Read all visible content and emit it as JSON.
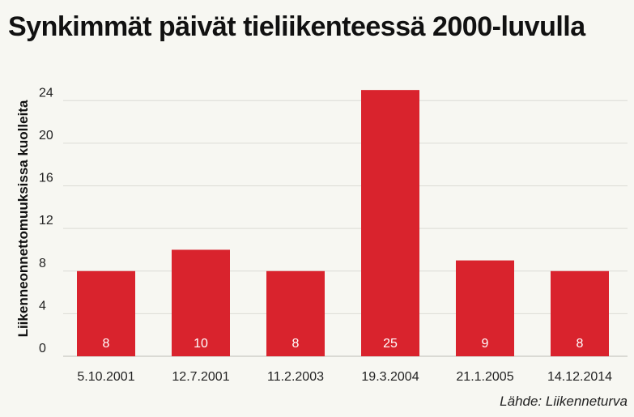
{
  "chart_data": {
    "type": "bar",
    "title": "Synkimmät päivät tieliikenteessä 2000-luvulla",
    "ylabel": "Liikenneonnettomuuksissa kuolleita",
    "xlabel": "",
    "categories": [
      "5.10.2001",
      "12.7.2001",
      "11.2.2003",
      "19.3.2004",
      "21.1.2005",
      "14.12.2014"
    ],
    "values": [
      8,
      10,
      8,
      25,
      9,
      8
    ],
    "data_labels": [
      "8",
      "10",
      "8",
      "25",
      "9",
      "8"
    ],
    "y_ticks": [
      0,
      4,
      8,
      12,
      16,
      20,
      24
    ],
    "ylim": [
      0,
      26
    ],
    "grid": true,
    "legend": "none",
    "source": "Lähde: Liikenneturva"
  },
  "colors": {
    "bar": "#d9232d",
    "grid": "#dcdcd6",
    "background": "#f7f7f2"
  }
}
